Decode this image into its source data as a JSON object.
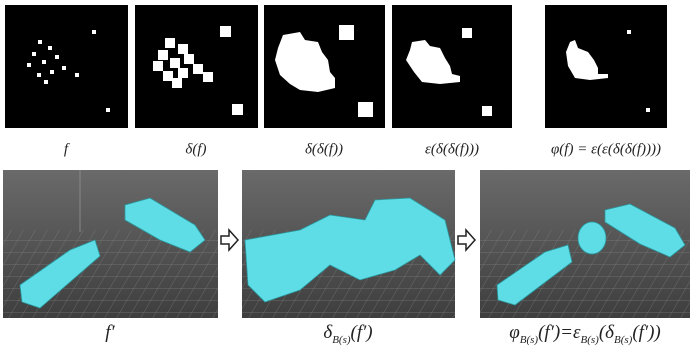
{
  "top_row": [
    {
      "label": "f"
    },
    {
      "label": "δ(f)"
    },
    {
      "label": "δ(δ(f))"
    },
    {
      "label": "ε(δ(δ(f)))"
    },
    {
      "label": "φ(f) = ε(ε(δ(δ(f))))"
    }
  ],
  "bottom_row": [
    {
      "label": [
        {
          "t": "f′",
          "sub": false
        }
      ]
    },
    {
      "label": [
        {
          "t": "δ",
          "sub": false
        },
        {
          "t": "B(s)",
          "sub": true
        },
        {
          "t": "(f′)",
          "sub": false
        }
      ]
    },
    {
      "label": [
        {
          "t": "φ",
          "sub": false
        },
        {
          "t": "B(s)",
          "sub": true
        },
        {
          "t": "(f′)=ε",
          "sub": false
        },
        {
          "t": "B(s)",
          "sub": true
        },
        {
          "t": "(δ",
          "sub": false
        },
        {
          "t": "B(s)",
          "sub": true
        },
        {
          "t": "(f′))",
          "sub": false
        }
      ]
    }
  ]
}
